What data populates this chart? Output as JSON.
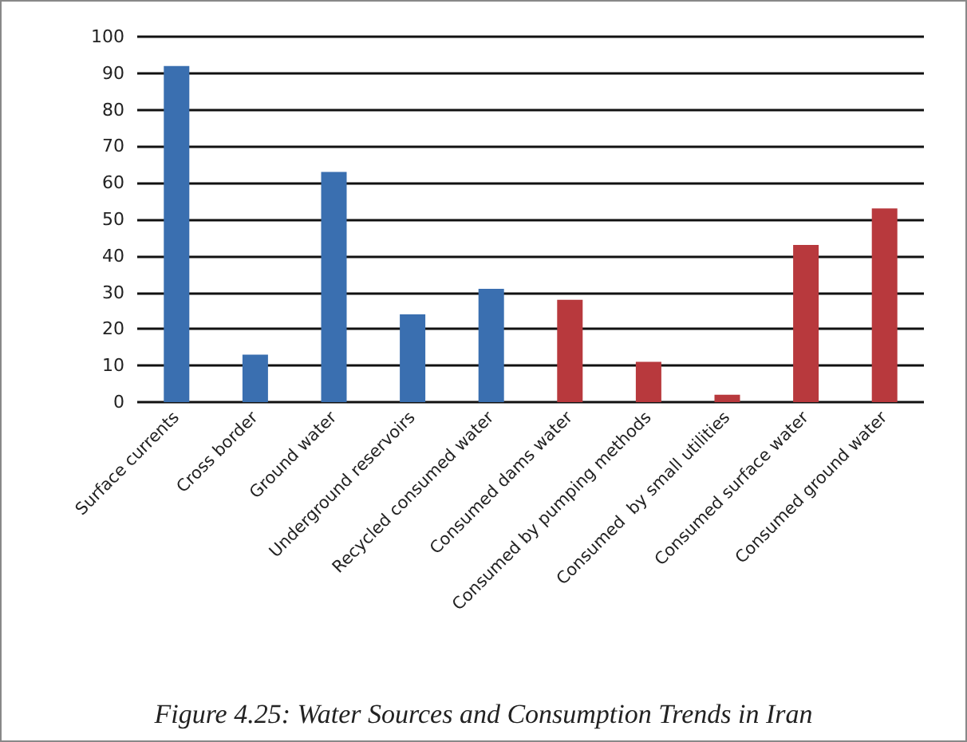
{
  "chart_data": {
    "type": "bar",
    "categories": [
      "Surface currents",
      "Cross border",
      "Ground water",
      "Underground reservoirs",
      "Recycled consumed water",
      "Consumed dams water",
      "Consumed by pumping methods",
      "Consumed  by small utilities",
      "Consumed surface water",
      "Consumed ground water"
    ],
    "values": [
      92,
      13,
      63,
      24,
      31,
      28,
      11,
      2,
      43,
      53
    ],
    "colors": [
      "#3a6fb0",
      "#3a6fb0",
      "#3a6fb0",
      "#3a6fb0",
      "#3a6fb0",
      "#b8393d",
      "#b8393d",
      "#b8393d",
      "#b8393d",
      "#b8393d"
    ],
    "ylim": [
      0,
      100
    ],
    "yticks": [
      0,
      10,
      20,
      30,
      40,
      50,
      60,
      70,
      80,
      90,
      100
    ],
    "grid": "y",
    "annotations": [
      "Figure 4.25: Water Sources and Consumption Trends in Iran"
    ]
  }
}
